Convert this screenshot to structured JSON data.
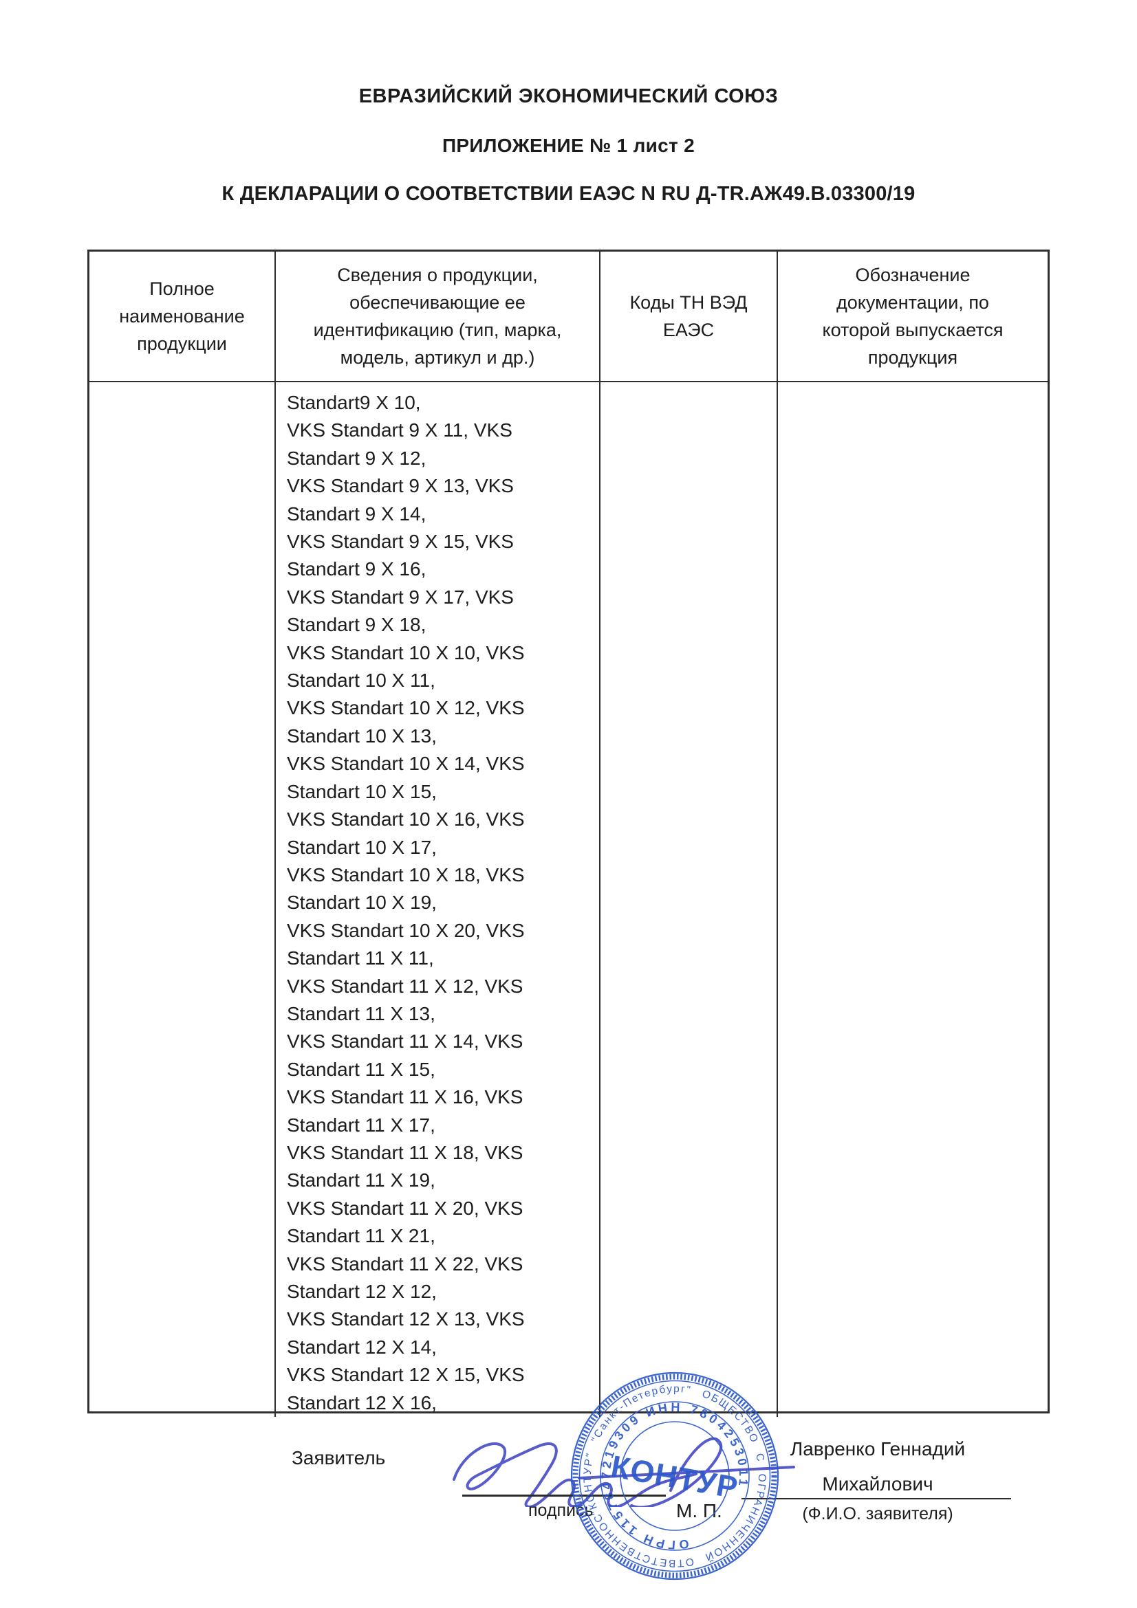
{
  "document": {
    "title_line1": "ЕВРАЗИЙСКИЙ ЭКОНОМИЧЕСКИЙ СОЮЗ",
    "title_line2": "ПРИЛОЖЕНИЕ № 1 лист 2",
    "title_line3": "К ДЕКЛАРАЦИИ О СООТВЕТСТВИИ ЕАЭС N RU Д-TR.АЖ49.В.03300/19"
  },
  "table": {
    "headers": [
      "Полное\nнаименование\nпродукции",
      "Сведения о продукции,\nобеспечивающие ее\nидентификацию (тип, марка,\nмодель, артикул и др.)",
      "Коды ТН ВЭД\nЕАЭС",
      "Обозначение\nдокументации, по\nкоторой выпускается\nпродукция"
    ],
    "product_lines": [
      "Standart9 X 10,",
      "VKS Standart 9 X 11, VKS",
      "Standart 9 X 12,",
      "VKS Standart 9 X 13, VKS",
      "Standart 9 X 14,",
      "VKS Standart 9 X 15, VKS",
      "Standart 9 X 16,",
      "VKS Standart 9 X 17, VKS",
      "Standart 9 X 18,",
      "VKS Standart 10 X 10, VKS",
      "Standart 10 X 11,",
      "VKS Standart 10 X 12, VKS",
      "Standart 10 X 13,",
      "VKS Standart 10 X 14, VKS",
      "Standart 10 X 15,",
      "VKS Standart 10 X 16, VKS",
      "Standart 10 X 17,",
      "VKS Standart 10 X 18, VKS",
      "Standart 10 X 19,",
      "VKS Standart 10 X 20, VKS",
      "Standart 11 X 11,",
      "VKS Standart 11 X 12, VKS",
      "Standart 11 X 13,",
      "VKS Standart 11 X 14, VKS",
      "Standart 11 X 15,",
      "VKS Standart 11 X 16, VKS",
      "Standart 11 X 17,",
      "VKS Standart 11 X 18, VKS",
      "Standart 11 X 19,",
      "VKS Standart 11 X 20, VKS",
      "Standart 11 X 21,",
      "VKS Standart 11 X 22, VKS",
      "Standart 12 X 12,",
      "VKS Standart 12 X 13, VKS",
      "Standart 12 X 14,",
      "VKS Standart 12 X 15, VKS",
      "Standart 12 X 16,"
    ]
  },
  "footer": {
    "applicant_label": "Заявитель",
    "signature_caption": "подпись",
    "stamp_place_label": "М. П.",
    "applicant_name": "Лавренко Геннадий\nМихайлович",
    "name_caption": "(Ф.И.О. заявителя)"
  },
  "stamp": {
    "outer_ring_text": "\"КОНТУР\" \"Санкт-Петербург\" ОБЩЕСТВО С ОГРАНИЧЕННОЙ ОТВЕТСТВЕННОСТЬЮ",
    "inner_ring_text": "ОГРН 1157847219309 ИНН 7804253011",
    "center_text": "КОНТУР"
  },
  "colors": {
    "text_ink": "#1d1d1d",
    "table_border": "#2e2e2e",
    "stamp_blue": "#2c57c9",
    "signature_blue": "#4f52c8"
  }
}
